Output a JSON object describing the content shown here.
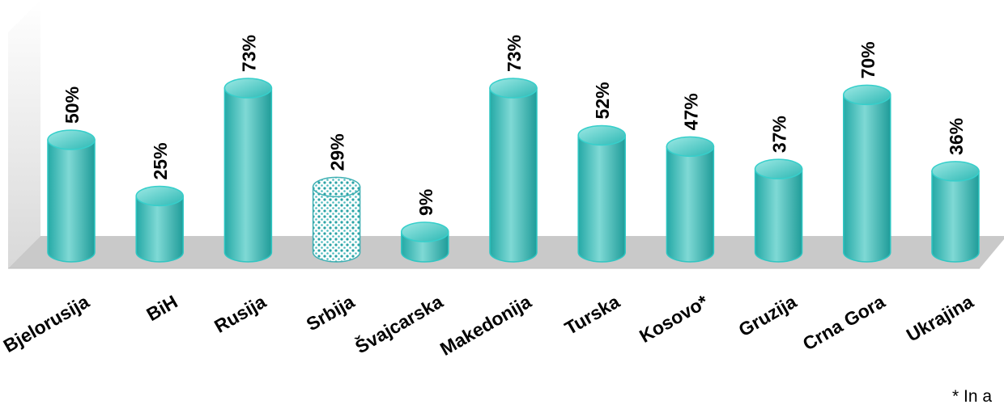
{
  "chart_data": {
    "type": "bar",
    "categories": [
      "Bjelorusija",
      "BiH",
      "Rusija",
      "Srbija",
      "Švajcarska",
      "Makedonija",
      "Turska",
      "Kosovo*",
      "Gruzija",
      "Crna Gora",
      "Ukrajina"
    ],
    "values": [
      50,
      25,
      73,
      29,
      9,
      73,
      52,
      47,
      37,
      70,
      36
    ],
    "value_labels": [
      "50%",
      "25%",
      "73%",
      "29%",
      "9%",
      "73%",
      "52%",
      "47%",
      "37%",
      "70%",
      "36%"
    ],
    "highlighted_category": "Srbija",
    "unit": "%",
    "ylim": [
      0,
      100
    ],
    "grid": false,
    "legend": "none",
    "footnote": "* In a",
    "colors": {
      "bar_fill": "#26b3b0",
      "bar_light": "#8ee3df",
      "bar_dark": "#128a88",
      "highlight_dots": "#2aa3a6",
      "floor": "#c8c8c8",
      "wall": "#e6e6e6"
    }
  }
}
